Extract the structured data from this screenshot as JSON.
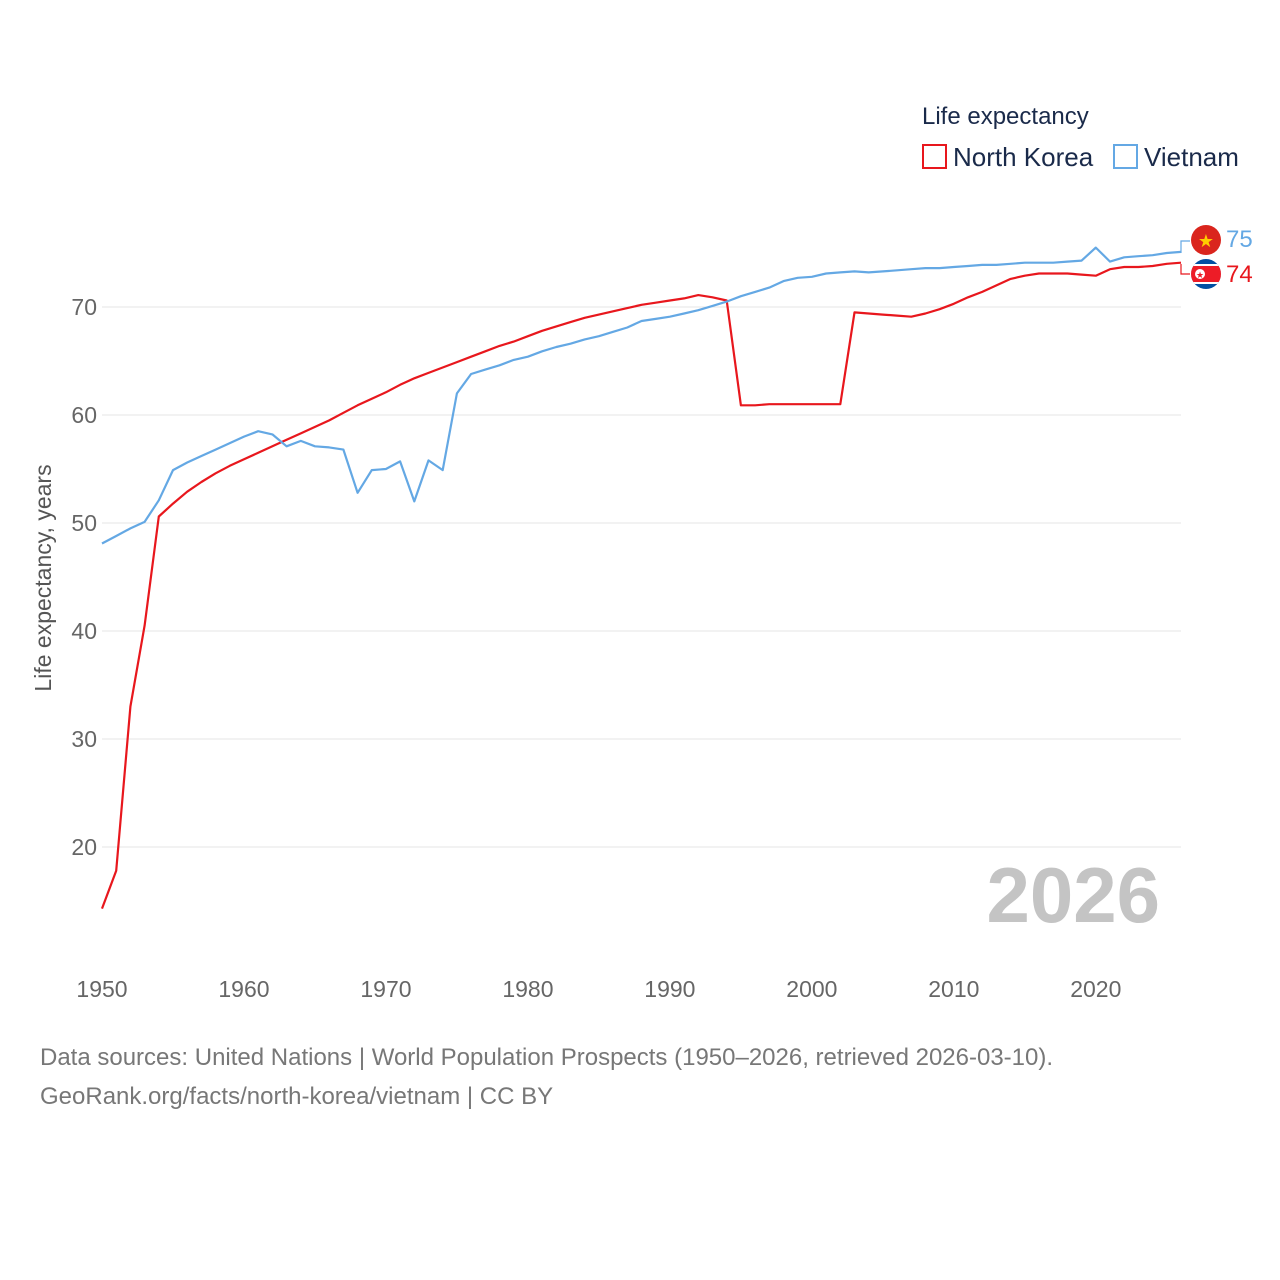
{
  "chart_data": {
    "type": "line",
    "title": "Life expectancy",
    "ylabel": "Life expectancy, years",
    "xlabel": "",
    "current_year": "2026",
    "xlim": [
      1950,
      2026
    ],
    "ylim": [
      12,
      78
    ],
    "x_ticks": [
      "1950",
      "1960",
      "1970",
      "1980",
      "1990",
      "2000",
      "2010",
      "2020"
    ],
    "y_ticks": [
      "20",
      "30",
      "40",
      "50",
      "60",
      "70"
    ],
    "grid": true,
    "legend_position": "top-right",
    "series": [
      {
        "name": "North Korea",
        "color": "#e8171d",
        "end_label": "74",
        "flag_icon": "north-korea-flag-icon",
        "points": [
          [
            1950,
            14.3
          ],
          [
            1951,
            17.8
          ],
          [
            1952,
            33.0
          ],
          [
            1953,
            40.5
          ],
          [
            1954,
            50.6
          ],
          [
            1955,
            51.8
          ],
          [
            1956,
            52.9
          ],
          [
            1957,
            53.8
          ],
          [
            1958,
            54.6
          ],
          [
            1959,
            55.3
          ],
          [
            1960,
            55.9
          ],
          [
            1961,
            56.5
          ],
          [
            1962,
            57.1
          ],
          [
            1963,
            57.7
          ],
          [
            1964,
            58.3
          ],
          [
            1965,
            58.9
          ],
          [
            1966,
            59.5
          ],
          [
            1967,
            60.2
          ],
          [
            1968,
            60.9
          ],
          [
            1969,
            61.5
          ],
          [
            1970,
            62.1
          ],
          [
            1971,
            62.8
          ],
          [
            1972,
            63.4
          ],
          [
            1973,
            63.9
          ],
          [
            1974,
            64.4
          ],
          [
            1975,
            64.9
          ],
          [
            1976,
            65.4
          ],
          [
            1977,
            65.9
          ],
          [
            1978,
            66.4
          ],
          [
            1979,
            66.8
          ],
          [
            1980,
            67.3
          ],
          [
            1981,
            67.8
          ],
          [
            1982,
            68.2
          ],
          [
            1983,
            68.6
          ],
          [
            1984,
            69.0
          ],
          [
            1985,
            69.3
          ],
          [
            1986,
            69.6
          ],
          [
            1987,
            69.9
          ],
          [
            1988,
            70.2
          ],
          [
            1989,
            70.4
          ],
          [
            1990,
            70.6
          ],
          [
            1991,
            70.8
          ],
          [
            1992,
            71.1
          ],
          [
            1993,
            70.9
          ],
          [
            1994,
            70.6
          ],
          [
            1995,
            60.9
          ],
          [
            1996,
            60.9
          ],
          [
            1997,
            61.0
          ],
          [
            1998,
            61.0
          ],
          [
            1999,
            61.0
          ],
          [
            2000,
            61.0
          ],
          [
            2001,
            61.0
          ],
          [
            2002,
            61.0
          ],
          [
            2003,
            69.5
          ],
          [
            2004,
            69.4
          ],
          [
            2005,
            69.3
          ],
          [
            2006,
            69.2
          ],
          [
            2007,
            69.1
          ],
          [
            2008,
            69.4
          ],
          [
            2009,
            69.8
          ],
          [
            2010,
            70.3
          ],
          [
            2011,
            70.9
          ],
          [
            2012,
            71.4
          ],
          [
            2013,
            72.0
          ],
          [
            2014,
            72.6
          ],
          [
            2015,
            72.9
          ],
          [
            2016,
            73.1
          ],
          [
            2017,
            73.1
          ],
          [
            2018,
            73.1
          ],
          [
            2019,
            73.0
          ],
          [
            2020,
            72.9
          ],
          [
            2021,
            73.5
          ],
          [
            2022,
            73.7
          ],
          [
            2023,
            73.7
          ],
          [
            2024,
            73.8
          ],
          [
            2025,
            74.0
          ],
          [
            2026,
            74.1
          ]
        ]
      },
      {
        "name": "Vietnam",
        "color": "#64a8e4",
        "end_label": "75",
        "flag_icon": "vietnam-flag-icon",
        "points": [
          [
            1950,
            48.1
          ],
          [
            1951,
            48.8
          ],
          [
            1952,
            49.5
          ],
          [
            1953,
            50.1
          ],
          [
            1954,
            52.1
          ],
          [
            1955,
            54.9
          ],
          [
            1956,
            55.6
          ],
          [
            1957,
            56.2
          ],
          [
            1958,
            56.8
          ],
          [
            1959,
            57.4
          ],
          [
            1960,
            58.0
          ],
          [
            1961,
            58.5
          ],
          [
            1962,
            58.2
          ],
          [
            1963,
            57.1
          ],
          [
            1964,
            57.6
          ],
          [
            1965,
            57.1
          ],
          [
            1966,
            57.0
          ],
          [
            1967,
            56.8
          ],
          [
            1968,
            52.8
          ],
          [
            1969,
            54.9
          ],
          [
            1970,
            55.0
          ],
          [
            1971,
            55.7
          ],
          [
            1972,
            52.0
          ],
          [
            1973,
            55.8
          ],
          [
            1974,
            54.9
          ],
          [
            1975,
            62.0
          ],
          [
            1976,
            63.8
          ],
          [
            1977,
            64.2
          ],
          [
            1978,
            64.6
          ],
          [
            1979,
            65.1
          ],
          [
            1980,
            65.4
          ],
          [
            1981,
            65.9
          ],
          [
            1982,
            66.3
          ],
          [
            1983,
            66.6
          ],
          [
            1984,
            67.0
          ],
          [
            1985,
            67.3
          ],
          [
            1986,
            67.7
          ],
          [
            1987,
            68.1
          ],
          [
            1988,
            68.7
          ],
          [
            1989,
            68.9
          ],
          [
            1990,
            69.1
          ],
          [
            1991,
            69.4
          ],
          [
            1992,
            69.7
          ],
          [
            1993,
            70.1
          ],
          [
            1994,
            70.5
          ],
          [
            1995,
            71.0
          ],
          [
            1996,
            71.4
          ],
          [
            1997,
            71.8
          ],
          [
            1998,
            72.4
          ],
          [
            1999,
            72.7
          ],
          [
            2000,
            72.8
          ],
          [
            2001,
            73.1
          ],
          [
            2002,
            73.2
          ],
          [
            2003,
            73.3
          ],
          [
            2004,
            73.2
          ],
          [
            2005,
            73.3
          ],
          [
            2006,
            73.4
          ],
          [
            2007,
            73.5
          ],
          [
            2008,
            73.6
          ],
          [
            2009,
            73.6
          ],
          [
            2010,
            73.7
          ],
          [
            2011,
            73.8
          ],
          [
            2012,
            73.9
          ],
          [
            2013,
            73.9
          ],
          [
            2014,
            74.0
          ],
          [
            2015,
            74.1
          ],
          [
            2016,
            74.1
          ],
          [
            2017,
            74.1
          ],
          [
            2018,
            74.2
          ],
          [
            2019,
            74.3
          ],
          [
            2020,
            75.5
          ],
          [
            2021,
            74.2
          ],
          [
            2022,
            74.6
          ],
          [
            2023,
            74.7
          ],
          [
            2024,
            74.8
          ],
          [
            2025,
            75.0
          ],
          [
            2026,
            75.1
          ]
        ]
      }
    ]
  },
  "footer": {
    "line1": "Data sources: United Nations | World Population Prospects (1950–2026, retrieved 2026-03-10).",
    "line2": "GeoRank.org/facts/north-korea/vietnam | CC BY"
  }
}
